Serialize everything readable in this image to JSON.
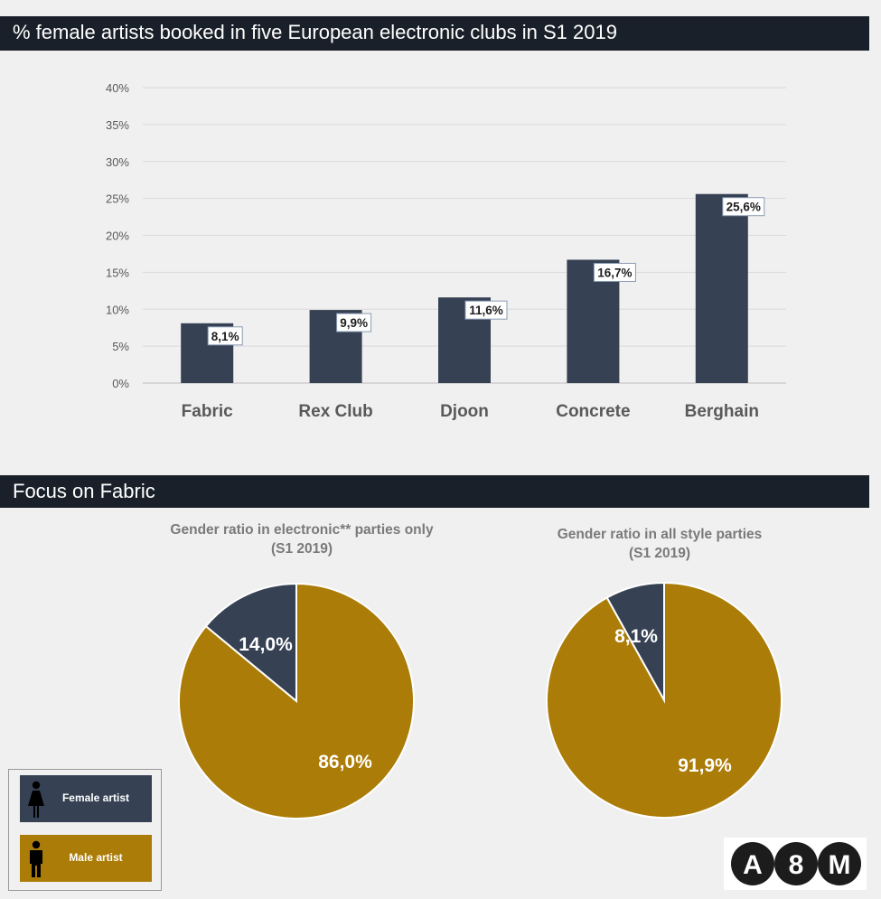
{
  "title_bar": "% female artists booked in five European electronic clubs in S1 2019",
  "chart_data": [
    {
      "type": "bar",
      "title": "% female artists booked in five European electronic clubs in S1 2019",
      "categories": [
        "Fabric",
        "Rex Club",
        "Djoon",
        "Concrete",
        "Berghain"
      ],
      "values": [
        8.1,
        9.9,
        11.6,
        16.7,
        25.6
      ],
      "data_labels": [
        "8,1%",
        "9,9%",
        "11,6%",
        "16,7%",
        "25,6%"
      ],
      "y_ticks": [
        "0%",
        "5%",
        "10%",
        "15%",
        "20%",
        "25%",
        "30%",
        "35%",
        "40%"
      ],
      "ylim": [
        0,
        40
      ],
      "grid": true,
      "color": "#364254"
    },
    {
      "type": "pie",
      "title": "Gender ratio in electronic** parties only",
      "subtitle": "(S1 2019)",
      "labels": [
        "Female artist",
        "Male artist"
      ],
      "values": [
        14.0,
        86.0
      ],
      "data_labels": [
        "14,0%",
        "86,0%"
      ]
    },
    {
      "type": "pie",
      "title": "Gender ratio in all style parties",
      "subtitle": "(S1 2019)",
      "labels": [
        "Female artist",
        "Male artist"
      ],
      "values": [
        8.1,
        91.9
      ],
      "data_labels": [
        "8,1%",
        "91,9%"
      ]
    }
  ],
  "section2_title": "Focus on Fabric",
  "legend": {
    "female": "Female artist",
    "male": "Male artist",
    "female_color": "#364254",
    "male_color": "#ab7c07"
  },
  "logo": {
    "left": "A",
    "middle": "8",
    "right": "M"
  }
}
